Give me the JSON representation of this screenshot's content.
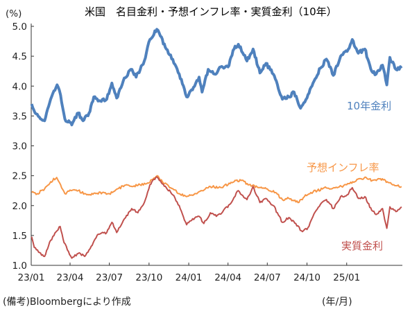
{
  "chart_data": {
    "type": "line",
    "title": "米国　名目金利・予想インフレ率・実質金利（10年）",
    "ylabel": "(%)",
    "xlabel": "",
    "ylim": [
      1.0,
      5.0
    ],
    "yticks": [
      "1.0",
      "1.5",
      "2.0",
      "2.5",
      "3.0",
      "3.5",
      "4.0",
      "4.5",
      "5.0"
    ],
    "xlim": [
      "2023-01-01",
      "2025-05-10"
    ],
    "xticks": [
      "23/01",
      "23/04",
      "23/07",
      "23/10",
      "24/01",
      "24/04",
      "24/07",
      "24/10",
      "25/01"
    ],
    "source_note": "(備考)Bloombergにより作成",
    "unit_note": "(年/月)",
    "grid": false,
    "series": [
      {
        "name": "10年金利",
        "color": "#4f81bd",
        "points": [
          [
            "2023-01-02",
            3.7
          ],
          [
            "2023-01-10",
            3.55
          ],
          [
            "2023-01-20",
            3.48
          ],
          [
            "2023-02-01",
            3.42
          ],
          [
            "2023-02-15",
            3.78
          ],
          [
            "2023-03-02",
            4.02
          ],
          [
            "2023-03-10",
            3.85
          ],
          [
            "2023-03-20",
            3.45
          ],
          [
            "2023-04-05",
            3.35
          ],
          [
            "2023-04-20",
            3.55
          ],
          [
            "2023-05-01",
            3.42
          ],
          [
            "2023-05-15",
            3.55
          ],
          [
            "2023-05-26",
            3.82
          ],
          [
            "2023-06-10",
            3.75
          ],
          [
            "2023-06-25",
            3.78
          ],
          [
            "2023-07-07",
            4.05
          ],
          [
            "2023-07-18",
            3.8
          ],
          [
            "2023-08-02",
            4.08
          ],
          [
            "2023-08-20",
            4.28
          ],
          [
            "2023-09-01",
            4.15
          ],
          [
            "2023-09-20",
            4.42
          ],
          [
            "2023-10-03",
            4.78
          ],
          [
            "2023-10-19",
            4.95
          ],
          [
            "2023-10-25",
            4.88
          ],
          [
            "2023-11-10",
            4.62
          ],
          [
            "2023-11-25",
            4.45
          ],
          [
            "2023-12-10",
            4.2
          ],
          [
            "2023-12-27",
            3.82
          ],
          [
            "2024-01-12",
            3.98
          ],
          [
            "2024-01-25",
            4.15
          ],
          [
            "2024-02-01",
            3.9
          ],
          [
            "2024-02-15",
            4.28
          ],
          [
            "2024-03-01",
            4.2
          ],
          [
            "2024-03-15",
            4.32
          ],
          [
            "2024-04-01",
            4.32
          ],
          [
            "2024-04-15",
            4.62
          ],
          [
            "2024-04-25",
            4.7
          ],
          [
            "2024-05-15",
            4.42
          ],
          [
            "2024-05-29",
            4.62
          ],
          [
            "2024-06-14",
            4.22
          ],
          [
            "2024-06-28",
            4.38
          ],
          [
            "2024-07-15",
            4.2
          ],
          [
            "2024-08-05",
            3.78
          ],
          [
            "2024-08-20",
            3.82
          ],
          [
            "2024-09-01",
            3.9
          ],
          [
            "2024-09-16",
            3.63
          ],
          [
            "2024-10-01",
            3.8
          ],
          [
            "2024-10-15",
            4.05
          ],
          [
            "2024-11-01",
            4.3
          ],
          [
            "2024-11-15",
            4.45
          ],
          [
            "2024-12-01",
            4.18
          ],
          [
            "2024-12-18",
            4.5
          ],
          [
            "2025-01-02",
            4.58
          ],
          [
            "2025-01-14",
            4.78
          ],
          [
            "2025-01-28",
            4.55
          ],
          [
            "2025-02-12",
            4.62
          ],
          [
            "2025-02-28",
            4.25
          ],
          [
            "2025-03-10",
            4.2
          ],
          [
            "2025-03-25",
            4.35
          ],
          [
            "2025-04-04",
            4.02
          ],
          [
            "2025-04-11",
            4.48
          ],
          [
            "2025-04-25",
            4.28
          ],
          [
            "2025-05-08",
            4.3
          ]
        ]
      },
      {
        "name": "予想インフレ率",
        "color": "#f79646",
        "points": [
          [
            "2023-01-02",
            2.22
          ],
          [
            "2023-01-15",
            2.2
          ],
          [
            "2023-02-01",
            2.28
          ],
          [
            "2023-02-15",
            2.4
          ],
          [
            "2023-03-01",
            2.47
          ],
          [
            "2023-03-10",
            2.35
          ],
          [
            "2023-03-20",
            2.2
          ],
          [
            "2023-04-01",
            2.26
          ],
          [
            "2023-04-20",
            2.25
          ],
          [
            "2023-05-10",
            2.18
          ],
          [
            "2023-05-31",
            2.2
          ],
          [
            "2023-06-15",
            2.22
          ],
          [
            "2023-07-01",
            2.2
          ],
          [
            "2023-07-20",
            2.28
          ],
          [
            "2023-08-10",
            2.35
          ],
          [
            "2023-08-25",
            2.32
          ],
          [
            "2023-09-10",
            2.35
          ],
          [
            "2023-09-28",
            2.38
          ],
          [
            "2023-10-10",
            2.44
          ],
          [
            "2023-10-20",
            2.5
          ],
          [
            "2023-11-01",
            2.4
          ],
          [
            "2023-11-20",
            2.3
          ],
          [
            "2023-12-10",
            2.2
          ],
          [
            "2023-12-27",
            2.15
          ],
          [
            "2024-01-15",
            2.2
          ],
          [
            "2024-02-01",
            2.25
          ],
          [
            "2024-02-20",
            2.32
          ],
          [
            "2024-03-10",
            2.3
          ],
          [
            "2024-04-01",
            2.35
          ],
          [
            "2024-04-15",
            2.4
          ],
          [
            "2024-05-01",
            2.42
          ],
          [
            "2024-05-20",
            2.35
          ],
          [
            "2024-06-10",
            2.3
          ],
          [
            "2024-07-01",
            2.28
          ],
          [
            "2024-07-20",
            2.22
          ],
          [
            "2024-08-05",
            2.1
          ],
          [
            "2024-08-20",
            2.12
          ],
          [
            "2024-09-10",
            2.05
          ],
          [
            "2024-09-25",
            2.15
          ],
          [
            "2024-10-10",
            2.22
          ],
          [
            "2024-10-25",
            2.25
          ],
          [
            "2024-11-10",
            2.3
          ],
          [
            "2024-11-25",
            2.28
          ],
          [
            "2024-12-10",
            2.3
          ],
          [
            "2025-01-01",
            2.35
          ],
          [
            "2025-01-15",
            2.4
          ],
          [
            "2025-02-01",
            2.45
          ],
          [
            "2025-02-15",
            2.47
          ],
          [
            "2025-03-01",
            2.42
          ],
          [
            "2025-03-20",
            2.45
          ],
          [
            "2025-04-05",
            2.4
          ],
          [
            "2025-04-20",
            2.35
          ],
          [
            "2025-05-08",
            2.32
          ]
        ]
      },
      {
        "name": "実質金利",
        "color": "#c0504d",
        "points": [
          [
            "2023-01-02",
            1.48
          ],
          [
            "2023-01-08",
            1.3
          ],
          [
            "2023-01-18",
            1.22
          ],
          [
            "2023-02-01",
            1.15
          ],
          [
            "2023-02-15",
            1.42
          ],
          [
            "2023-03-02",
            1.58
          ],
          [
            "2023-03-09",
            1.65
          ],
          [
            "2023-03-18",
            1.38
          ],
          [
            "2023-04-05",
            1.12
          ],
          [
            "2023-04-20",
            1.2
          ],
          [
            "2023-05-05",
            1.15
          ],
          [
            "2023-05-20",
            1.32
          ],
          [
            "2023-06-05",
            1.52
          ],
          [
            "2023-06-25",
            1.55
          ],
          [
            "2023-07-07",
            1.72
          ],
          [
            "2023-07-18",
            1.55
          ],
          [
            "2023-08-05",
            1.78
          ],
          [
            "2023-08-22",
            1.95
          ],
          [
            "2023-09-05",
            1.88
          ],
          [
            "2023-09-20",
            2.05
          ],
          [
            "2023-10-03",
            2.35
          ],
          [
            "2023-10-19",
            2.48
          ],
          [
            "2023-10-25",
            2.42
          ],
          [
            "2023-11-10",
            2.3
          ],
          [
            "2023-11-25",
            2.18
          ],
          [
            "2023-12-10",
            2.0
          ],
          [
            "2023-12-27",
            1.68
          ],
          [
            "2024-01-10",
            1.78
          ],
          [
            "2024-01-25",
            1.82
          ],
          [
            "2024-02-05",
            1.7
          ],
          [
            "2024-02-20",
            1.88
          ],
          [
            "2024-03-05",
            1.82
          ],
          [
            "2024-03-20",
            1.9
          ],
          [
            "2024-04-05",
            2.02
          ],
          [
            "2024-04-25",
            2.25
          ],
          [
            "2024-05-15",
            2.1
          ],
          [
            "2024-05-29",
            2.32
          ],
          [
            "2024-06-14",
            2.05
          ],
          [
            "2024-06-28",
            2.12
          ],
          [
            "2024-07-15",
            2.0
          ],
          [
            "2024-08-05",
            1.72
          ],
          [
            "2024-08-20",
            1.8
          ],
          [
            "2024-09-05",
            1.7
          ],
          [
            "2024-09-18",
            1.58
          ],
          [
            "2024-10-01",
            1.6
          ],
          [
            "2024-10-15",
            1.82
          ],
          [
            "2024-11-01",
            2.02
          ],
          [
            "2024-11-15",
            2.1
          ],
          [
            "2024-12-01",
            1.95
          ],
          [
            "2024-12-18",
            2.15
          ],
          [
            "2025-01-02",
            2.18
          ],
          [
            "2025-01-14",
            2.3
          ],
          [
            "2025-01-28",
            2.12
          ],
          [
            "2025-02-12",
            2.15
          ],
          [
            "2025-02-28",
            1.92
          ],
          [
            "2025-03-10",
            1.85
          ],
          [
            "2025-03-25",
            1.95
          ],
          [
            "2025-04-04",
            1.62
          ],
          [
            "2025-04-11",
            1.98
          ],
          [
            "2025-04-25",
            1.9
          ],
          [
            "2025-05-08",
            1.98
          ]
        ]
      }
    ]
  }
}
